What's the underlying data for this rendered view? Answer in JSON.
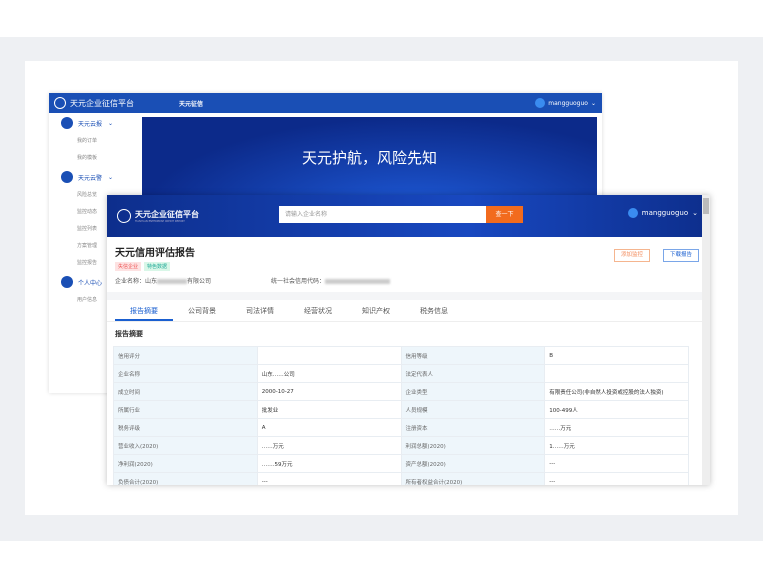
{
  "back_window": {
    "logo": "天元企业征信平台",
    "nav_active": "天元征信",
    "user": "mangguoguo",
    "banner": "天元护航，风险先知",
    "sidebar": [
      {
        "group": "天元云报",
        "items": [
          "我的订单",
          "我的模板"
        ]
      },
      {
        "group": "天元云警",
        "items": [
          "风险总览",
          "监控动态",
          "监控列表",
          "方案管理",
          "监控报告"
        ]
      },
      {
        "group": "个人中心",
        "items": [
          "用户信息"
        ]
      }
    ]
  },
  "front": {
    "logo": "天元企业征信平台",
    "logo_sub": "TIANYUAN ENTERPRISE CREDIT REPORT",
    "search_placeholder": "请输入企业名称",
    "search_button": "查一下",
    "user": "mangguoguo",
    "report_title": "天元信用评估报告",
    "tags": [
      "失信企业",
      "特色数据"
    ],
    "add_monitor": "添加监控",
    "download": "下载报告",
    "company_label": "企业名称：",
    "company_prefix": "山东",
    "company_suffix": "有限公司",
    "credit_code_label": "统一社会信用代码：",
    "tabs": [
      "报告摘要",
      "公司背景",
      "司法详情",
      "经营状况",
      "知识产权",
      "税务信息"
    ],
    "section_title": "报告摘要",
    "rows": [
      [
        "信用评分",
        "",
        "信用等级",
        "B"
      ],
      [
        "企业名称",
        "山东……公司",
        "法定代表人",
        ""
      ],
      [
        "成立时间",
        "2000-10-27",
        "企业类型",
        "有限责任公司(非自然人投资或控股的法人独资)"
      ],
      [
        "所属行业",
        "批发业",
        "人员规模",
        "100-499人"
      ],
      [
        "税务评级",
        "A",
        "注册资本",
        "……万元"
      ],
      [
        "营业收入(2020)",
        "……万元",
        "利润总额(2020)",
        "1……万元"
      ],
      [
        "净利润(2020)",
        "…….59万元",
        "资产总额(2020)",
        "---"
      ],
      [
        "负债合计(2020)",
        "---",
        "所有者权益合计(2020)",
        "---"
      ]
    ]
  }
}
